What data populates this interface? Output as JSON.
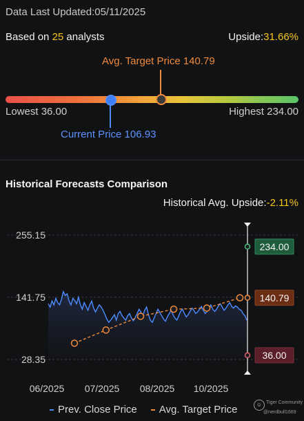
{
  "header": {
    "updated": "Data Last Updated:05/11/2025",
    "based_prefix": "Based on ",
    "analyst_count": "25",
    "based_suffix": " analysts",
    "upside_label": "Upside:",
    "upside_value": "31.66%"
  },
  "price_range": {
    "avg_target_label": "Avg. Target Price 140.79",
    "lowest_label": "Lowest 36.00",
    "highest_label": "Highest 234.00",
    "current_label": "Current Price 106.93",
    "lowest": 36.0,
    "highest": 234.0,
    "current": 106.93,
    "avg_target": 140.79
  },
  "section": {
    "title": "Historical Forecasts Comparison",
    "hist_upside_label": "Historical Avg. Upside:",
    "hist_upside_value": "-2.11%"
  },
  "colors": {
    "prev_close": "#4d8cff",
    "avg_target": "#f08a3c",
    "high_badge": "#1f6b45",
    "target_badge": "#7a3518",
    "low_badge": "#6b2530"
  },
  "chart_data": {
    "type": "line",
    "ylim": [
      28.35,
      255.15
    ],
    "yticks": [
      "255.15",
      "141.75",
      "28.35"
    ],
    "xticks": [
      "06/2025",
      "07/2025",
      "08/2025",
      "10/2025"
    ],
    "series": [
      {
        "name": "Prev. Close Price",
        "values": [
          130,
          124,
          135,
          128,
          140,
          132,
          128,
          138,
          152,
          145,
          148,
          135,
          128,
          140,
          136,
          130,
          142,
          128,
          120,
          132,
          125,
          118,
          128,
          135,
          122,
          115,
          122,
          128,
          124,
          118,
          110,
          102,
          96,
          100,
          105,
          110,
          100,
          112,
          116,
          108,
          104,
          100,
          108,
          112,
          104,
          99,
          105,
          112,
          120,
          115,
          108,
          118,
          124,
          110,
          100,
          96,
          104,
          112,
          120,
          114,
          108,
          102,
          98,
          106,
          112,
          118,
          110,
          104,
          100,
          108,
          116,
          120,
          112,
          106,
          110,
          116,
          122,
          118,
          112,
          115,
          120,
          125,
          118,
          112,
          116,
          122,
          128,
          120,
          116,
          120,
          126,
          130,
          124,
          118,
          122,
          128,
          132,
          125,
          122,
          126,
          124,
          120,
          118,
          112,
          108,
          100
        ]
      },
      {
        "name": "Avg. Target Price",
        "points": [
          {
            "i": 0,
            "value": 58
          },
          {
            "i": 20,
            "value": 82
          },
          {
            "i": 42,
            "value": 107
          },
          {
            "i": 63,
            "value": 120
          },
          {
            "i": 84,
            "value": 122
          },
          {
            "i": 105,
            "value": 140.79
          }
        ]
      }
    ],
    "end_labels": {
      "high": "234.00",
      "target": "140.79",
      "low": "36.00"
    },
    "legend": [
      "Prev. Close Price",
      "Avg. Target Price"
    ]
  },
  "watermark": {
    "brand": "Tiger Community",
    "user": "@nerdbull1669"
  }
}
